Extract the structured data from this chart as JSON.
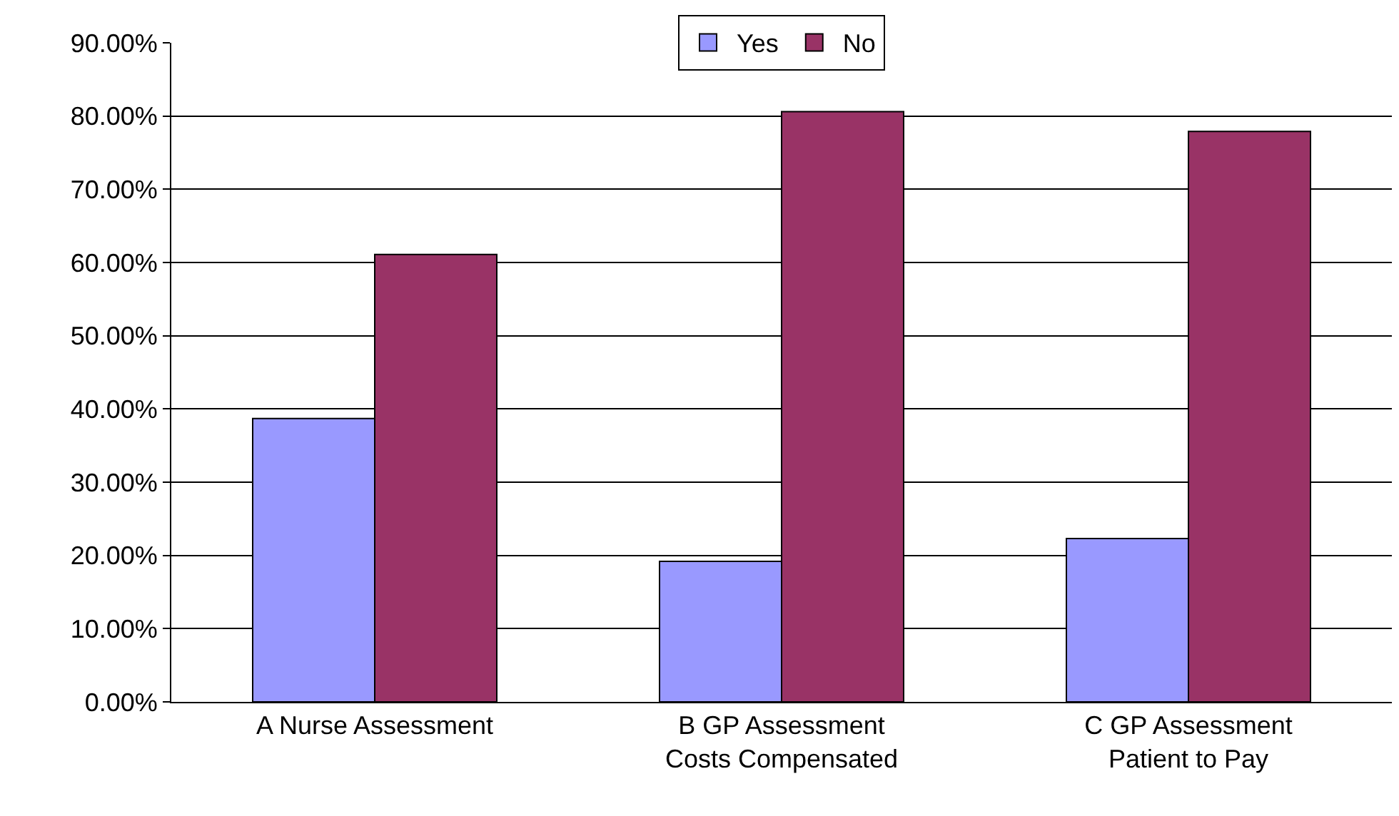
{
  "chart_data": {
    "type": "bar",
    "categories": [
      "A Nurse Assessment",
      "B GP Assessment\nCosts Compensated",
      "C GP Assessment\nPatient to Pay"
    ],
    "series": [
      {
        "name": "Yes",
        "color": "#9999ff",
        "values": [
          38.7,
          19.2,
          22.3
        ]
      },
      {
        "name": "No",
        "color": "#993366",
        "values": [
          61.1,
          80.6,
          77.9
        ]
      }
    ],
    "ylim": [
      0,
      90
    ],
    "yticks": [
      {
        "value": 0,
        "label": "0.00%"
      },
      {
        "value": 10,
        "label": "10.00%"
      },
      {
        "value": 20,
        "label": "20.00%"
      },
      {
        "value": 30,
        "label": "30.00%"
      },
      {
        "value": 40,
        "label": "40.00%"
      },
      {
        "value": 50,
        "label": "50.00%"
      },
      {
        "value": 60,
        "label": "60.00%"
      },
      {
        "value": 70,
        "label": "70.00%"
      },
      {
        "value": 80,
        "label": "80.00%"
      },
      {
        "value": 90,
        "label": "90.00%"
      }
    ],
    "grid": "y",
    "legend": "top"
  }
}
